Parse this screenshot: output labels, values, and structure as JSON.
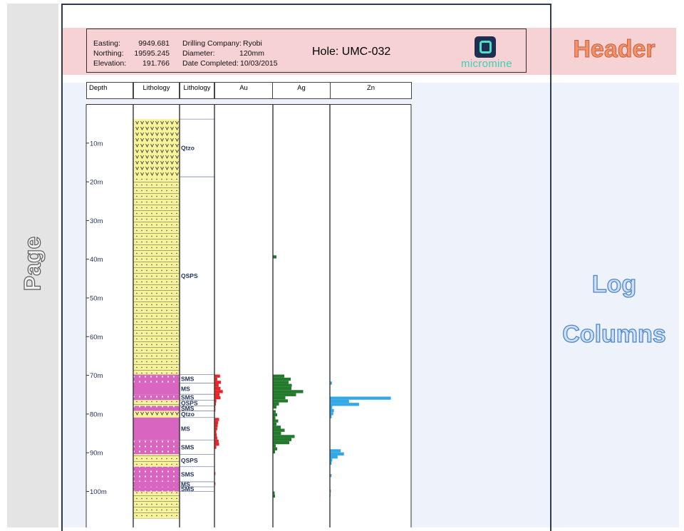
{
  "annotations": {
    "page": "Page",
    "header": "Header",
    "log_columns_line1": "Log",
    "log_columns_line2": "Columns"
  },
  "header": {
    "easting_label": "Easting:",
    "easting_value": "9949.681",
    "northing_label": "Northing:",
    "northing_value": "19595.245",
    "elevation_label": "Elevation:",
    "elevation_value": "191.766",
    "company_label": "Drilling Company:",
    "company_value": "Ryobi",
    "diameter_label": "Diameter:",
    "diameter_value": "120mm",
    "date_label": "Date Completed:",
    "date_value": "10/03/2015",
    "hole": "Hole: UMC-032",
    "logo_text": "micromine"
  },
  "columns": {
    "depth": "Depth",
    "lithology_1": "Lithology",
    "lithology_2": "Lithology",
    "au": "Au",
    "ag": "Ag",
    "zn": "Zn"
  },
  "depth_ticks": [
    "10m",
    "20m",
    "30m",
    "40m",
    "50m",
    "60m",
    "70m",
    "80m",
    "90m",
    "100m"
  ],
  "lithology_intervals": [
    {
      "code": "Qtzo",
      "from": 3.8,
      "to": 18.7,
      "pattern": "v"
    },
    {
      "code": "QSPS",
      "from": 18.7,
      "to": 69.8,
      "pattern": "dash"
    },
    {
      "code": "SMS",
      "from": 69.8,
      "to": 72.0,
      "pattern": "dots"
    },
    {
      "code": "MS",
      "from": 72.0,
      "to": 74.9,
      "pattern": "solid"
    },
    {
      "code": "SMS",
      "from": 74.9,
      "to": 76.4,
      "pattern": "dots"
    },
    {
      "code": "QSPS",
      "from": 76.4,
      "to": 77.9,
      "pattern": "dash"
    },
    {
      "code": "SMS",
      "from": 77.9,
      "to": 79.2,
      "pattern": "dots"
    },
    {
      "code": "Qtzo",
      "from": 79.2,
      "to": 80.9,
      "pattern": "v"
    },
    {
      "code": "MS",
      "from": 80.9,
      "to": 86.7,
      "pattern": "solid"
    },
    {
      "code": "SMS",
      "from": 86.7,
      "to": 90.4,
      "pattern": "dots"
    },
    {
      "code": "QSPS",
      "from": 90.4,
      "to": 93.6,
      "pattern": "dash"
    },
    {
      "code": "SMS",
      "from": 93.6,
      "to": 97.5,
      "pattern": "dots"
    },
    {
      "code": "MS",
      "from": 97.5,
      "to": 98.8,
      "pattern": "solid"
    },
    {
      "code": "SMS",
      "from": 98.8,
      "to": 100.0,
      "pattern": "dots"
    },
    {
      "code": "",
      "from": 100.0,
      "to": 107.0,
      "pattern": "dash"
    }
  ],
  "assays": {
    "au": [
      [
        69.8,
        1.2
      ],
      [
        70.6,
        0.6
      ],
      [
        71.4,
        1.4
      ],
      [
        72.2,
        0.9
      ],
      [
        73.0,
        1.3
      ],
      [
        73.8,
        1.8
      ],
      [
        74.6,
        1.1
      ],
      [
        75.4,
        1.3
      ],
      [
        76.2,
        0.4
      ],
      [
        77.0,
        0.3
      ],
      [
        77.8,
        0.2
      ],
      [
        78.6,
        0.2
      ],
      [
        81.0,
        1.0
      ],
      [
        81.8,
        0.8
      ],
      [
        82.6,
        0.7
      ],
      [
        83.4,
        0.6
      ],
      [
        84.2,
        0.4
      ],
      [
        85.0,
        0.5
      ],
      [
        85.8,
        0.6
      ],
      [
        86.6,
        0.9
      ],
      [
        87.4,
        1.0
      ],
      [
        88.2,
        0.4
      ],
      [
        95.0,
        0.2
      ],
      [
        97.6,
        0.2
      ]
    ],
    "ag": [
      [
        39.0,
        1.0
      ],
      [
        69.8,
        3.2
      ],
      [
        70.6,
        5.0
      ],
      [
        71.4,
        4.4
      ],
      [
        72.2,
        5.3
      ],
      [
        73.0,
        5.2
      ],
      [
        73.8,
        8.5
      ],
      [
        74.6,
        6.5
      ],
      [
        75.4,
        3.5
      ],
      [
        76.2,
        4.2
      ],
      [
        77.0,
        1.7
      ],
      [
        77.8,
        1.0
      ],
      [
        79.0,
        0.8
      ],
      [
        79.8,
        1.2
      ],
      [
        80.6,
        0.7
      ],
      [
        81.4,
        1.5
      ],
      [
        82.2,
        1.0
      ],
      [
        83.0,
        2.2
      ],
      [
        83.8,
        3.3
      ],
      [
        84.6,
        2.3
      ],
      [
        85.4,
        6.1
      ],
      [
        86.2,
        5.2
      ],
      [
        87.0,
        4.6
      ],
      [
        87.8,
        0.8
      ],
      [
        88.6,
        1.2
      ],
      [
        89.4,
        0.6
      ],
      [
        100.0,
        0.5
      ],
      [
        100.8,
        0.6
      ]
    ],
    "zn": [
      [
        71.6,
        0.6
      ],
      [
        75.5,
        18.2
      ],
      [
        76.3,
        5.7
      ],
      [
        77.1,
        8.7
      ],
      [
        77.9,
        0.7
      ],
      [
        78.7,
        1.2
      ],
      [
        79.5,
        1.0
      ],
      [
        80.3,
        0.5
      ],
      [
        89.1,
        3.2
      ],
      [
        89.9,
        4.2
      ],
      [
        90.7,
        2.3
      ],
      [
        91.5,
        0.7
      ],
      [
        92.3,
        0.5
      ],
      [
        95.5,
        0.5
      ],
      [
        99.5,
        0.3
      ],
      [
        100.5,
        0.2
      ]
    ]
  },
  "colors": {
    "au": "#e8232a",
    "ag": "#237a2c",
    "zn": "#33a8e8",
    "magenta": "#d866c0",
    "yellow": "#f7f39a",
    "text_dark": "#1f2f52"
  }
}
